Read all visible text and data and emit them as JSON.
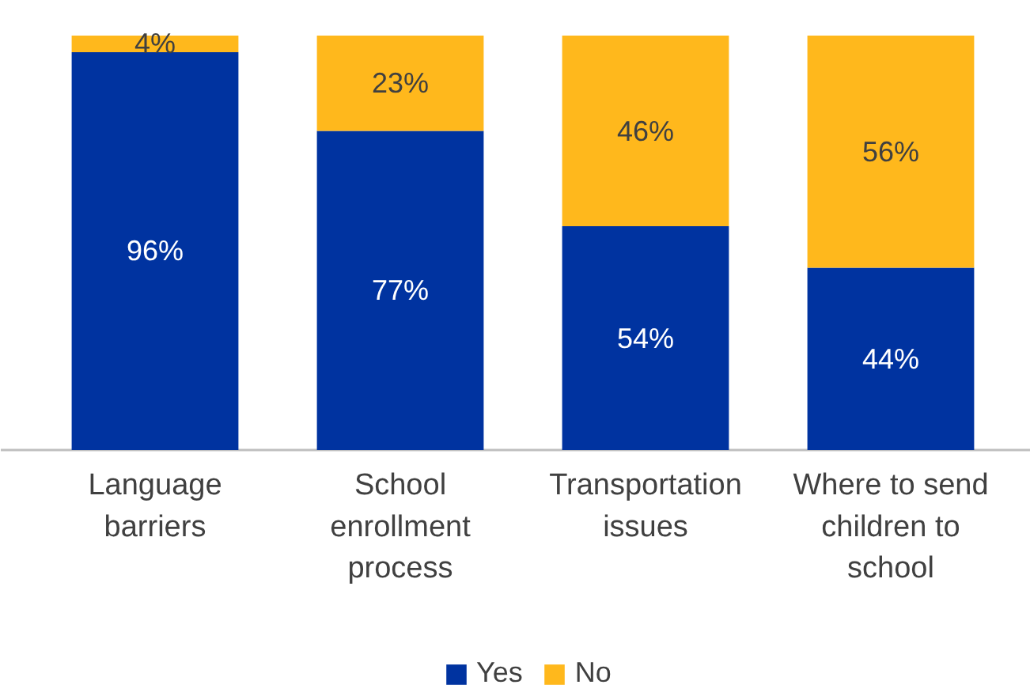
{
  "chart_data": {
    "type": "bar",
    "stacked": true,
    "legend": "bottom",
    "grid": false,
    "categories": [
      "Language barriers",
      "School enrollment process",
      "Transportation issues",
      "Where to send children to school"
    ],
    "series": [
      {
        "name": "Yes",
        "color": "#0033a0",
        "values": [
          96,
          77,
          54,
          44
        ],
        "value_labels": [
          "96%",
          "77%",
          "54%",
          "44%"
        ]
      },
      {
        "name": "No",
        "color": "#ffb81c",
        "values": [
          4,
          23,
          46,
          56
        ],
        "value_labels": [
          "4%",
          "23%",
          "46%",
          "56%"
        ]
      }
    ]
  }
}
